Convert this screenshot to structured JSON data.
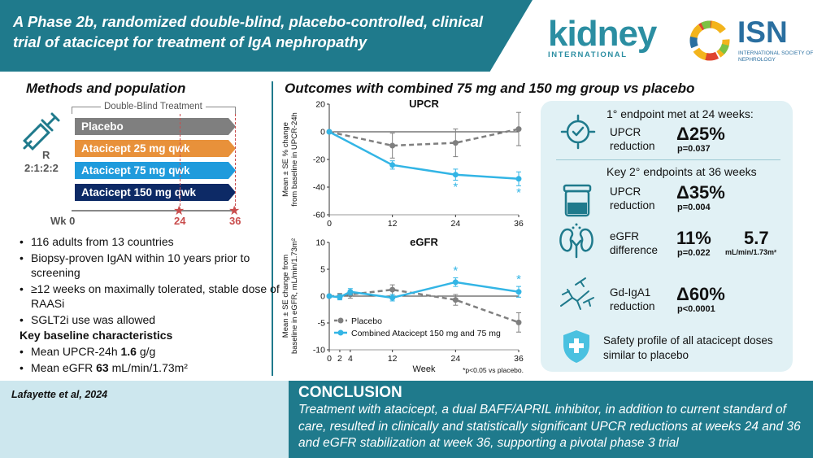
{
  "header": {
    "title": "A Phase 2b, randomized double-blind, placebo-controlled, clinical trial of atacicept for treatment of IgA nephropathy",
    "kidney_logo_word": "kidney",
    "kidney_logo_sub": "INTERNATIONAL",
    "isn_logo_word": "ISN",
    "isn_logo_sub": "INTERNATIONAL SOCIETY OF NEPHROLOGY"
  },
  "methods": {
    "title": "Methods and population",
    "treatment_label": "Double-Blind Treatment",
    "randomization": "R",
    "ratio": "2:1:2:2",
    "arms": [
      "Placebo",
      "Atacicept 25 mg qwk",
      "Atacicept 75 mg qwk",
      "Atacicept 150 mg qwk"
    ],
    "timeline": {
      "wk_label": "Wk 0",
      "star_24": "24",
      "star_36": "36"
    },
    "bullets": [
      "116 adults from 13 countries",
      "Biopsy-proven IgAN within 10 years prior to screening",
      "≥12 weeks on maximally tolerated, stable dose of RAASi",
      "SGLT2i use was allowed"
    ],
    "baseline_title": "Key baseline characteristics",
    "baseline": [
      {
        "prefix": "Mean UPCR-24h ",
        "value": "1.6",
        "suffix": " g/g"
      },
      {
        "prefix": "Mean eGFR ",
        "value": "63",
        "suffix": " mL/min/1.73m²"
      }
    ]
  },
  "outcomes": {
    "title": "Outcomes with combined 75 mg and 150 mg group vs placebo"
  },
  "chart_data": [
    {
      "type": "line",
      "title": "UPCR",
      "xlabel": "",
      "ylabel": "Mean ± SE % change from baseline in UPCR-24h",
      "x_ticks": [
        0,
        12,
        24,
        36
      ],
      "y_ticks": [
        20,
        0,
        -20,
        -40,
        -60
      ],
      "xlim": [
        0,
        36
      ],
      "ylim": [
        -60,
        20
      ],
      "series": [
        {
          "name": "Placebo",
          "color": "#7f7f7f",
          "dashed": true,
          "x": [
            0,
            12,
            24,
            36
          ],
          "y": [
            0,
            -10,
            -8,
            2
          ],
          "se": [
            0,
            9,
            10,
            12
          ]
        },
        {
          "name": "Combined Atacicept 150 mg and 75 mg",
          "color": "#33b5e5",
          "dashed": false,
          "x": [
            0,
            12,
            24,
            36
          ],
          "y": [
            0,
            -24,
            -31,
            -34
          ],
          "se": [
            0,
            3,
            4,
            5
          ]
        }
      ],
      "significance": [
        {
          "x": 24,
          "label": "*"
        },
        {
          "x": 36,
          "label": "*"
        }
      ]
    },
    {
      "type": "line",
      "title": "eGFR",
      "xlabel": "Week",
      "ylabel": "Mean ± SE change from baseline in eGFR, mL/min/1.73m²",
      "x_ticks": [
        0,
        2,
        4,
        12,
        24,
        36
      ],
      "y_ticks": [
        10,
        5,
        0,
        -5,
        -10
      ],
      "xlim": [
        0,
        36
      ],
      "ylim": [
        -10,
        10
      ],
      "series": [
        {
          "name": "Placebo",
          "color": "#7f7f7f",
          "dashed": true,
          "x": [
            0,
            2,
            4,
            12,
            24,
            36
          ],
          "y": [
            0,
            0,
            0.3,
            1.2,
            -0.7,
            -4.9
          ],
          "se": [
            0,
            0.5,
            0.7,
            0.9,
            1.0,
            1.8
          ]
        },
        {
          "name": "Combined Atacicept 150 mg and 75 mg",
          "color": "#33b5e5",
          "dashed": false,
          "x": [
            0,
            2,
            4,
            12,
            24,
            36
          ],
          "y": [
            0,
            -0.2,
            0.8,
            -0.3,
            2.6,
            0.8
          ],
          "se": [
            0,
            0.5,
            0.6,
            0.6,
            0.8,
            1.0
          ]
        }
      ],
      "significance": [
        {
          "x": 24,
          "label": "*"
        },
        {
          "x": 36,
          "label": "*"
        }
      ],
      "legend": [
        "Placebo",
        "Combined Atacicept 150 mg and 75 mg"
      ],
      "footnote": "*p<0.05 vs placebo."
    }
  ],
  "results": {
    "primary_heading": "1° endpoint met at 24 weeks:",
    "primary": {
      "label_1": "UPCR",
      "label_2": "reduction",
      "big": "Δ25%",
      "p": "p=0.037"
    },
    "secondary_heading": "Key 2° endpoints at 36 weeks",
    "upcr36": {
      "label_1": "UPCR",
      "label_2": "reduction",
      "big": "Δ35%",
      "p": "p=0.004"
    },
    "egfr": {
      "label_1": "eGFR",
      "label_2": "difference",
      "big": "11%",
      "p": "p=0.022",
      "big2": "5.7",
      "unit": "mL/min/1.73m²"
    },
    "gdiga": {
      "label_1": "Gd-IgA1",
      "label_2": "reduction",
      "big": "Δ60%",
      "p": "p<0.0001"
    },
    "safety": "Safety profile of all atacicept doses similar to placebo"
  },
  "citation": "Lafayette et al, 2024",
  "conclusion": {
    "title": "CONCLUSION",
    "text": "Treatment with atacicept, a dual BAFF/APRIL inhibitor, in addition to current standard of care, resulted in clinically and statistically significant UPCR reductions at weeks 24 and 36 and eGFR stabilization at week 36, supporting a pivotal phase 3 trial"
  },
  "colors": {
    "teal": "#1f7a8c",
    "placebo_arm": "#7f7f7f",
    "arm_25": "#e8913a",
    "arm_75": "#1f9bdc",
    "arm_150": "#0d2a66",
    "atacicept_line": "#33b5e5",
    "placebo_line": "#7f7f7f",
    "star": "#c94c4c"
  }
}
